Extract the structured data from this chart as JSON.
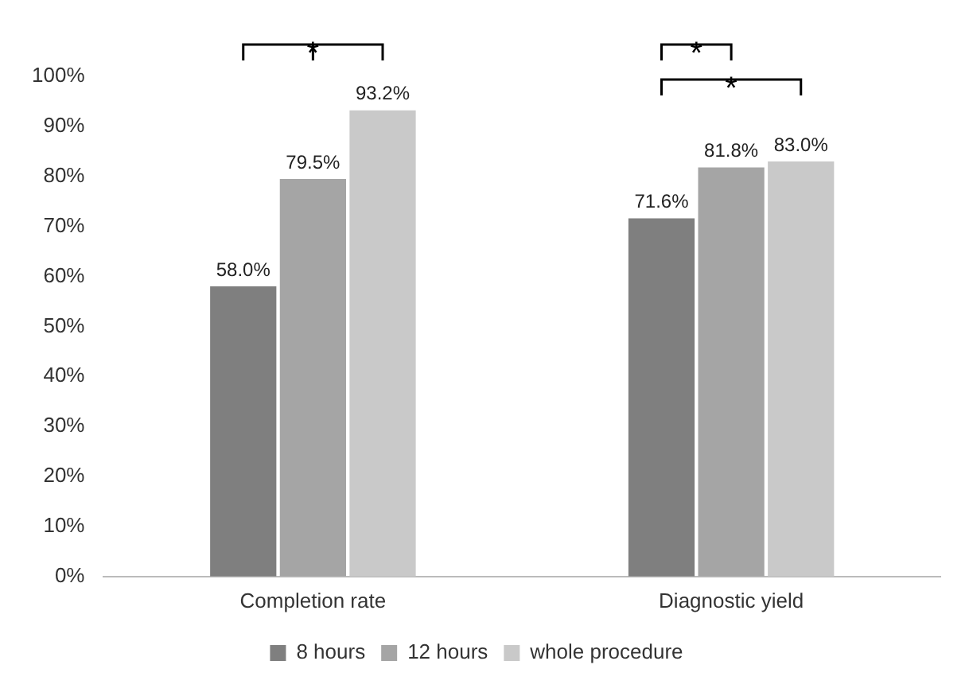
{
  "chart_data": {
    "type": "bar",
    "categories": [
      "Completion rate",
      "Diagnostic yield"
    ],
    "series": [
      {
        "name": "8 hours",
        "color": "#7f7f7f",
        "values": [
          58.0,
          71.6
        ],
        "value_labels": [
          "58.0%",
          "71.6%"
        ]
      },
      {
        "name": "12 hours",
        "color": "#a5a5a5",
        "values": [
          79.5,
          81.8
        ],
        "value_labels": [
          "79.5%",
          "81.8%"
        ]
      },
      {
        "name": "whole procedure",
        "color": "#c9c9c9",
        "values": [
          93.2,
          83.0
        ],
        "value_labels": [
          "93.2%",
          "83.0%"
        ]
      }
    ],
    "ylim": [
      0,
      100
    ],
    "yticks": [
      {
        "value": 0,
        "label": "0%"
      },
      {
        "value": 10,
        "label": "10%"
      },
      {
        "value": 20,
        "label": "20%"
      },
      {
        "value": 30,
        "label": "30%"
      },
      {
        "value": 40,
        "label": "40%"
      },
      {
        "value": 50,
        "label": "50%"
      },
      {
        "value": 60,
        "label": "60%"
      },
      {
        "value": 70,
        "label": "70%"
      },
      {
        "value": 80,
        "label": "80%"
      },
      {
        "value": 90,
        "label": "90%"
      },
      {
        "value": 100,
        "label": "100%"
      }
    ],
    "annotations": [
      "*",
      "*",
      "*"
    ],
    "legend": "bottom",
    "grid": false
  }
}
